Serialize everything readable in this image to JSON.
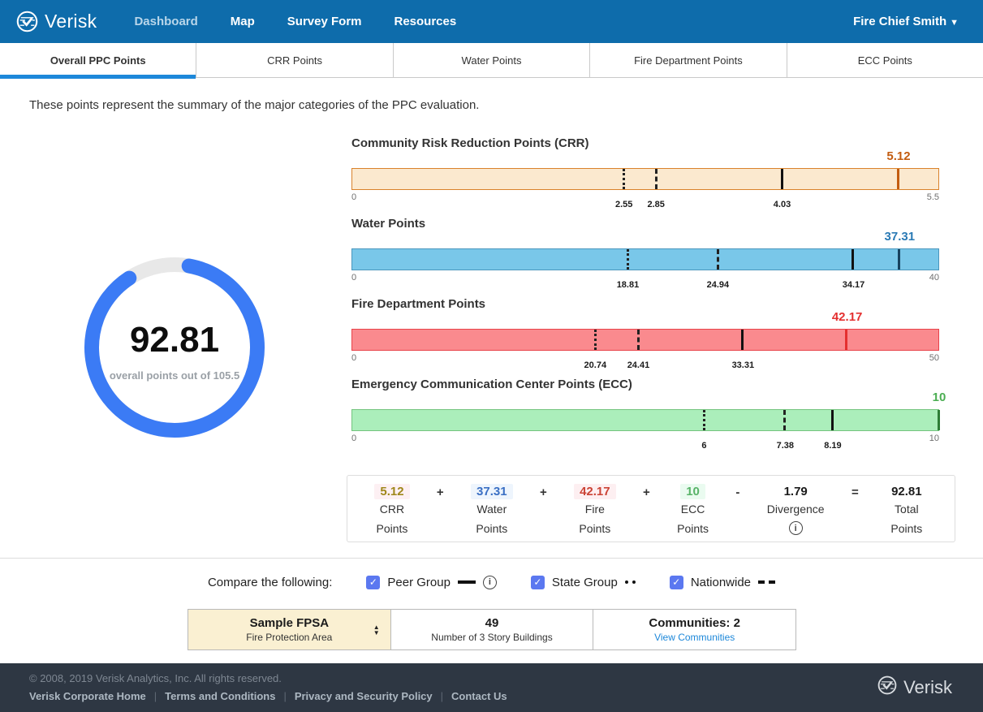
{
  "header": {
    "brand": "Verisk",
    "nav": [
      {
        "label": "Dashboard",
        "active": true
      },
      {
        "label": "Map",
        "active": false
      },
      {
        "label": "Survey Form",
        "active": false
      },
      {
        "label": "Resources",
        "active": false
      }
    ],
    "user": "Fire Chief Smith"
  },
  "tabs": [
    {
      "label": "Overall PPC Points",
      "active": true
    },
    {
      "label": "CRR Points",
      "active": false
    },
    {
      "label": "Water Points",
      "active": false
    },
    {
      "label": "Fire Department Points",
      "active": false
    },
    {
      "label": "ECC Points",
      "active": false
    }
  ],
  "intro": "These points represent the summary of the major categories of the PPC evaluation.",
  "gauge": {
    "value": "92.81",
    "caption": "overall points out of 105.5",
    "fraction": 0.8798,
    "color": "#3b7bf5",
    "track": "#e8e8e8"
  },
  "chart_data": [
    {
      "type": "bar",
      "title": "Community Risk Reduction Points (CRR)",
      "min": 0,
      "max": 5.5,
      "min_label": "0",
      "max_label": "5.5",
      "value": 5.12,
      "value_label": "5.12",
      "fill": "#fbe9cf",
      "border": "#d9822b",
      "accent": "#c35c10",
      "marker_color": "#c35c10",
      "markers": [
        {
          "style": "dotted",
          "series": "State Group",
          "value": 2.55,
          "label": "2.55"
        },
        {
          "style": "dashed",
          "series": "Nationwide",
          "value": 2.85,
          "label": "2.85"
        },
        {
          "style": "solid",
          "series": "Peer Group",
          "value": 4.03,
          "label": "4.03"
        }
      ]
    },
    {
      "type": "bar",
      "title": "Water Points",
      "min": 0,
      "max": 40,
      "min_label": "0",
      "max_label": "40",
      "value": 37.31,
      "value_label": "37.31",
      "fill": "#79c7e9",
      "border": "#4a96bd",
      "accent": "#2a7ab5",
      "marker_color": "#17425e",
      "markers": [
        {
          "style": "dotted",
          "series": "State Group",
          "value": 18.81,
          "label": "18.81"
        },
        {
          "style": "dashed",
          "series": "Nationwide",
          "value": 24.94,
          "label": "24.94"
        },
        {
          "style": "solid",
          "series": "Peer Group",
          "value": 34.17,
          "label": "34.17"
        }
      ]
    },
    {
      "type": "bar",
      "title": "Fire Department Points",
      "min": 0,
      "max": 50,
      "min_label": "0",
      "max_label": "50",
      "value": 42.17,
      "value_label": "42.17",
      "fill": "#fa8a8e",
      "border": "#e8434a",
      "accent": "#e42f2f",
      "marker_color": "#e42f2f",
      "markers": [
        {
          "style": "dotted",
          "series": "State Group",
          "value": 20.74,
          "label": "20.74"
        },
        {
          "style": "dashed",
          "series": "Nationwide",
          "value": 24.41,
          "label": "24.41"
        },
        {
          "style": "solid",
          "series": "Peer Group",
          "value": 33.31,
          "label": "33.31"
        }
      ]
    },
    {
      "type": "bar",
      "title": "Emergency Communication Center Points (ECC)",
      "min": 0,
      "max": 10,
      "min_label": "0",
      "max_label": "10",
      "value": 10,
      "value_label": "10",
      "fill": "#abeebb",
      "border": "#74c47e",
      "accent": "#4bae52",
      "marker_color": "#2d7d36",
      "markers": [
        {
          "style": "dotted",
          "series": "State Group",
          "value": 6,
          "label": "6"
        },
        {
          "style": "dashed",
          "series": "Nationwide",
          "value": 7.38,
          "label": "7.38"
        },
        {
          "style": "solid",
          "series": "Peer Group",
          "value": 8.19,
          "label": "8.19"
        }
      ]
    }
  ],
  "equation": {
    "items": [
      {
        "type": "term",
        "value": "5.12",
        "lines": [
          "CRR",
          "Points"
        ],
        "color": "#9f871b",
        "bg": "#fdf0f3"
      },
      {
        "type": "op",
        "op": "+"
      },
      {
        "type": "term",
        "value": "37.31",
        "lines": [
          "Water",
          "Points"
        ],
        "color": "#3a6fc4",
        "bg": "#eef5fd"
      },
      {
        "type": "op",
        "op": "+"
      },
      {
        "type": "term",
        "value": "42.17",
        "lines": [
          "Fire",
          "Points"
        ],
        "color": "#cb4335",
        "bg": "#fdeff1"
      },
      {
        "type": "op",
        "op": "+"
      },
      {
        "type": "term",
        "value": "10",
        "lines": [
          "ECC",
          "Points"
        ],
        "color": "#58b368",
        "bg": "#eafbf0"
      },
      {
        "type": "op",
        "op": "-"
      },
      {
        "type": "term",
        "value": "1.79",
        "lines": [
          "Divergence"
        ],
        "color": "#1b1b1b",
        "info": true
      },
      {
        "type": "op",
        "op": "="
      },
      {
        "type": "term",
        "value": "92.81",
        "lines": [
          "Total",
          "Points"
        ],
        "color": "#1b1b1b"
      }
    ],
    "info_glyph": "i"
  },
  "compare": {
    "label": "Compare the following:",
    "checkbox_color": "#5b78f0",
    "check_glyph": "✓",
    "info_glyph": "i",
    "options": [
      {
        "label": "Peer Group",
        "line": "solid",
        "checked": true,
        "info": true
      },
      {
        "label": "State Group",
        "line": "dotted",
        "checked": true,
        "info": false
      },
      {
        "label": "Nationwide",
        "line": "dashed",
        "checked": true,
        "info": false
      }
    ]
  },
  "selector": {
    "cells": [
      {
        "title": "Sample FPSA",
        "sub": "Fire Protection Area",
        "type": "select"
      },
      {
        "title": "49",
        "sub": "Number of 3 Story Buildings",
        "type": "static"
      },
      {
        "title": "Communities: 2",
        "sub": "View Communities",
        "type": "link"
      }
    ],
    "sort_up": "▲",
    "sort_down": "▼"
  },
  "footer": {
    "copyright": "© 2008, 2019 Verisk Analytics, Inc. All rights reserved.",
    "links": [
      "Verisk Corporate Home",
      "Terms and Conditions",
      "Privacy and Security Policy",
      "Contact Us"
    ],
    "brand": "Verisk"
  }
}
